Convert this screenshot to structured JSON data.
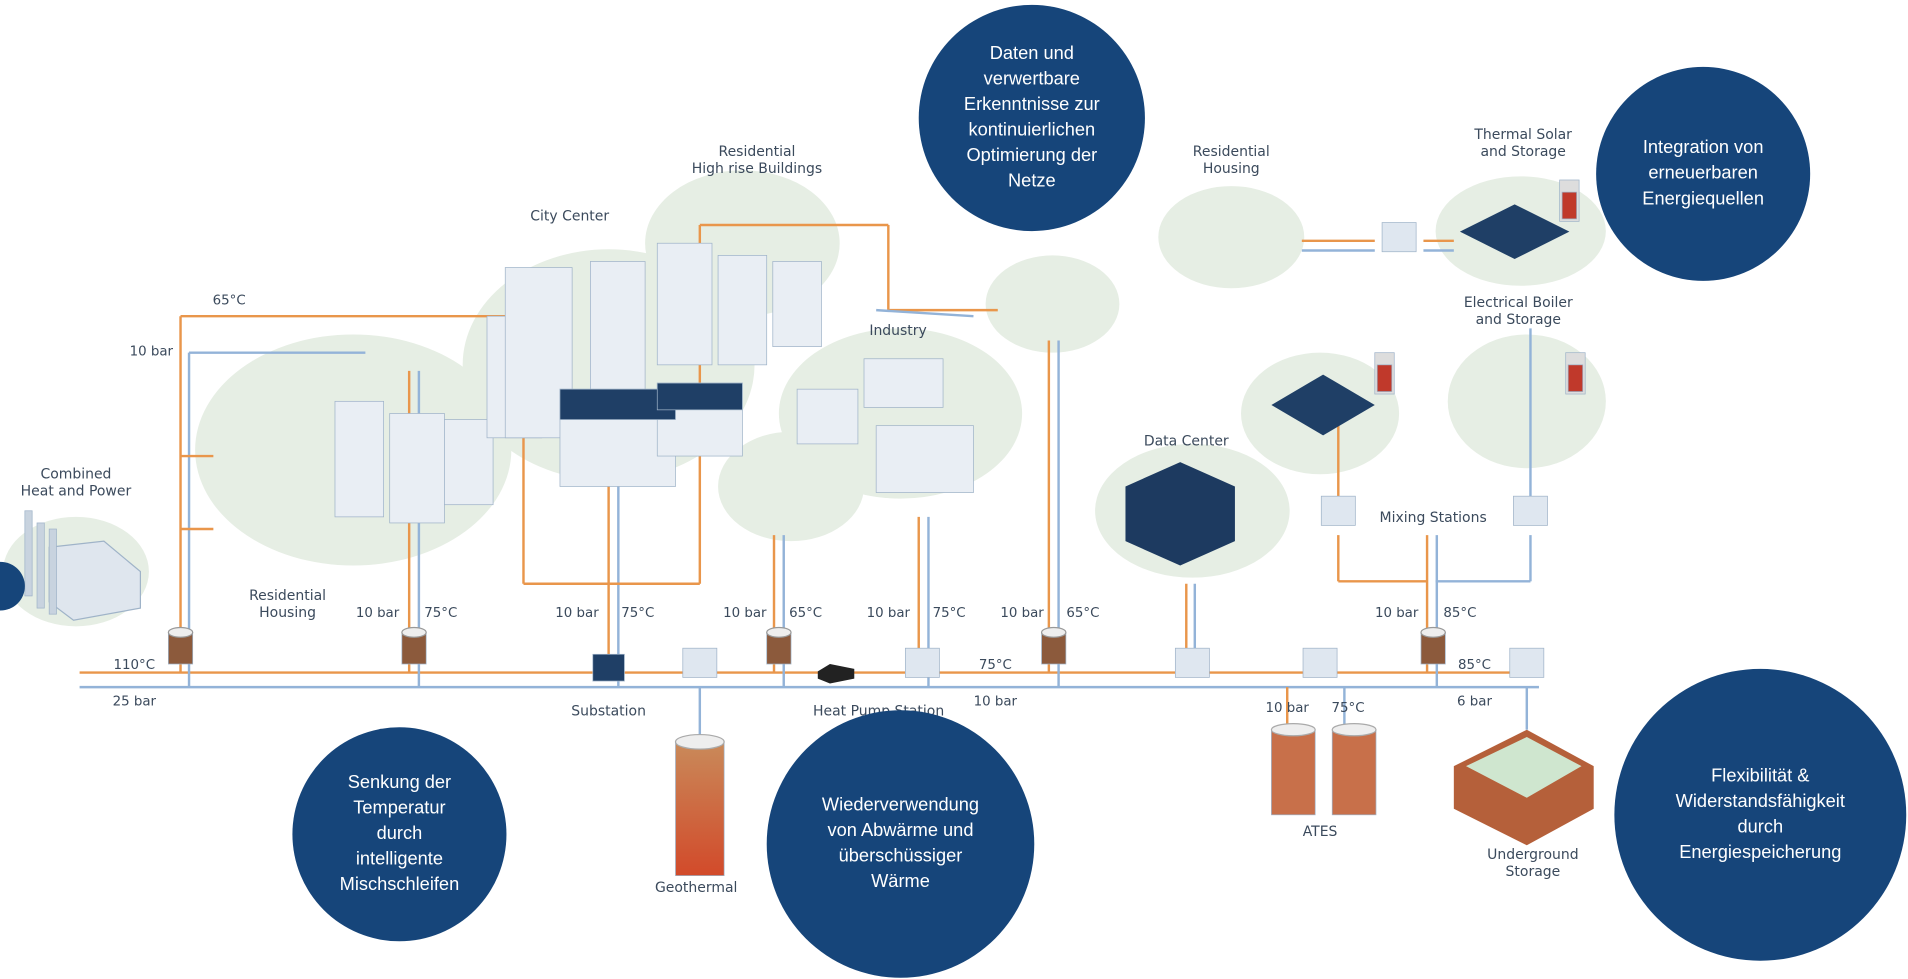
{
  "bubbles": [
    {
      "lines": [
        "Daten und",
        "verwertbare",
        "Erkenntnisse zur",
        "kontinuierlichen",
        "Optimierung der",
        "Netze"
      ]
    },
    {
      "lines": [
        "Integration von",
        "erneuerbaren",
        "Energiequellen"
      ]
    },
    {
      "lines": [
        "Senkung der",
        "Temperatur",
        "durch",
        "intelligente",
        "Mischschleifen"
      ]
    },
    {
      "lines": [
        "Wiederverwendung",
        "von Abwärme und",
        "überschüssiger",
        "Wärme"
      ]
    },
    {
      "lines": [
        "Flexibilität &",
        "Widerstandsfähigkeit",
        "durch",
        "Energiespeicherung"
      ]
    }
  ],
  "places": [
    {
      "lines": [
        "Combined",
        "Heat and Power"
      ]
    },
    {
      "lines": [
        "Residential",
        "Housing"
      ]
    },
    {
      "lines": [
        "City Center"
      ]
    },
    {
      "lines": [
        "Residential",
        "High rise Buildings"
      ]
    },
    {
      "lines": [
        "Industry"
      ]
    },
    {
      "lines": [
        "Residential",
        "Housing"
      ]
    },
    {
      "lines": [
        "Thermal Solar",
        "and Storage"
      ]
    },
    {
      "lines": [
        "Electrical Boiler",
        "and Storage"
      ]
    },
    {
      "lines": [
        "Data Center"
      ]
    },
    {
      "lines": [
        "Mixing Stations"
      ]
    },
    {
      "lines": [
        "Substation"
      ]
    },
    {
      "lines": [
        "Heat Pump Station"
      ]
    },
    {
      "lines": [
        "Geothermal"
      ]
    },
    {
      "lines": [
        "ATES"
      ]
    },
    {
      "lines": [
        "Underground",
        "Storage"
      ]
    }
  ],
  "pipe_labels": [
    "65°C",
    "10 bar",
    "110°C",
    "25 bar",
    "10 bar",
    "75°C",
    "10 bar",
    "75°C",
    "10 bar",
    "65°C",
    "10 bar",
    "75°C",
    "10 bar",
    "65°C",
    "75°C",
    "10 bar",
    "10 bar",
    "85°C",
    "85°C",
    "6 bar",
    "10 bar",
    "75°C"
  ]
}
